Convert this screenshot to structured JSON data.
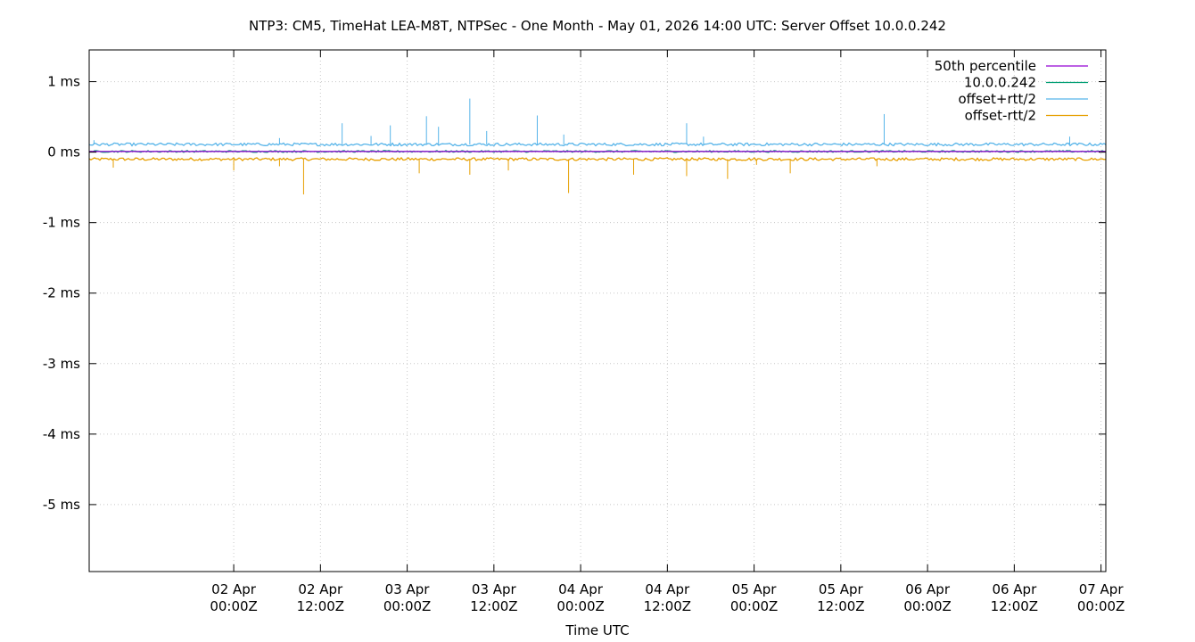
{
  "chart_data": {
    "type": "line",
    "title": "NTP3: CM5, TimeHat LEA-M8T, NTPSec - One Month - May 01, 2026 14:00 UTC: Server Offset 10.0.0.242",
    "xlabel": "Time UTC",
    "ylabel": "",
    "x_range": [
      "2026-04-01T04:00Z",
      "2026-04-07T00:40Z"
    ],
    "ylim": [
      -5.95,
      1.45
    ],
    "y_unit": "ms",
    "grid": true,
    "legend_position": "top-right",
    "y_ticks": [
      {
        "value": 1,
        "label": "1 ms"
      },
      {
        "value": 0,
        "label": "0 ms"
      },
      {
        "value": -1,
        "label": "-1 ms"
      },
      {
        "value": -2,
        "label": "-2 ms"
      },
      {
        "value": -3,
        "label": "-3 ms"
      },
      {
        "value": -4,
        "label": "-4 ms"
      },
      {
        "value": -5,
        "label": "-5 ms"
      }
    ],
    "x_ticks": [
      {
        "value": "2026-04-02T00:00Z",
        "date": "02 Apr",
        "time": "00:00Z"
      },
      {
        "value": "2026-04-02T12:00Z",
        "date": "02 Apr",
        "time": "12:00Z"
      },
      {
        "value": "2026-04-03T00:00Z",
        "date": "03 Apr",
        "time": "00:00Z"
      },
      {
        "value": "2026-04-03T12:00Z",
        "date": "03 Apr",
        "time": "12:00Z"
      },
      {
        "value": "2026-04-04T00:00Z",
        "date": "04 Apr",
        "time": "00:00Z"
      },
      {
        "value": "2026-04-04T12:00Z",
        "date": "04 Apr",
        "time": "12:00Z"
      },
      {
        "value": "2026-04-05T00:00Z",
        "date": "05 Apr",
        "time": "00:00Z"
      },
      {
        "value": "2026-04-05T12:00Z",
        "date": "05 Apr",
        "time": "12:00Z"
      },
      {
        "value": "2026-04-06T00:00Z",
        "date": "06 Apr",
        "time": "00:00Z"
      },
      {
        "value": "2026-04-06T12:00Z",
        "date": "06 Apr",
        "time": "12:00Z"
      },
      {
        "value": "2026-04-07T00:00Z",
        "date": "07 Apr",
        "time": "00:00Z"
      }
    ],
    "series": [
      {
        "name": "50th percentile",
        "color": "#9400d3",
        "points": [
          [
            "2026-04-01T04:00Z",
            0.01
          ],
          [
            "2026-04-07T00:40Z",
            0.01
          ]
        ]
      },
      {
        "name": "10.0.0.242",
        "color": "#009e73",
        "points": [
          [
            "2026-04-01T04:00Z",
            0.01
          ],
          [
            "2026-04-07T00:40Z",
            0.01
          ]
        ],
        "noise": 0.012
      },
      {
        "name": "offset+rtt/2",
        "color": "#56b4e9",
        "points": [
          [
            "2026-04-01T04:00Z",
            0.11
          ],
          [
            "2026-04-07T00:40Z",
            0.11
          ]
        ],
        "noise": 0.02,
        "spikes": [
          [
            "2026-04-01T04:40Z",
            0.17
          ],
          [
            "2026-04-02T06:20Z",
            0.2
          ],
          [
            "2026-04-02T15:00Z",
            0.41
          ],
          [
            "2026-04-02T19:00Z",
            0.23
          ],
          [
            "2026-04-02T21:40Z",
            0.38
          ],
          [
            "2026-04-03T02:40Z",
            0.51
          ],
          [
            "2026-04-03T04:20Z",
            0.36
          ],
          [
            "2026-04-03T08:40Z",
            0.76
          ],
          [
            "2026-04-03T11:00Z",
            0.3
          ],
          [
            "2026-04-03T18:00Z",
            0.52
          ],
          [
            "2026-04-03T21:40Z",
            0.25
          ],
          [
            "2026-04-04T14:40Z",
            0.41
          ],
          [
            "2026-04-04T17:00Z",
            0.22
          ],
          [
            "2026-04-05T18:00Z",
            0.54
          ],
          [
            "2026-04-06T19:40Z",
            0.22
          ]
        ]
      },
      {
        "name": "offset-rtt/2",
        "color": "#e69f00",
        "points": [
          [
            "2026-04-01T04:00Z",
            -0.1
          ],
          [
            "2026-04-07T00:40Z",
            -0.1
          ]
        ],
        "noise": 0.02,
        "spikes": [
          [
            "2026-04-01T07:20Z",
            -0.22
          ],
          [
            "2026-04-02T00:00Z",
            -0.26
          ],
          [
            "2026-04-02T06:20Z",
            -0.2
          ],
          [
            "2026-04-02T09:40Z",
            -0.6
          ],
          [
            "2026-04-03T01:40Z",
            -0.3
          ],
          [
            "2026-04-03T08:40Z",
            -0.32
          ],
          [
            "2026-04-03T14:00Z",
            -0.26
          ],
          [
            "2026-04-03T22:20Z",
            -0.58
          ],
          [
            "2026-04-04T07:20Z",
            -0.32
          ],
          [
            "2026-04-04T14:40Z",
            -0.34
          ],
          [
            "2026-04-04T20:20Z",
            -0.38
          ],
          [
            "2026-04-05T00:20Z",
            -0.18
          ],
          [
            "2026-04-05T05:00Z",
            -0.3
          ],
          [
            "2026-04-05T17:00Z",
            -0.2
          ]
        ]
      }
    ]
  }
}
